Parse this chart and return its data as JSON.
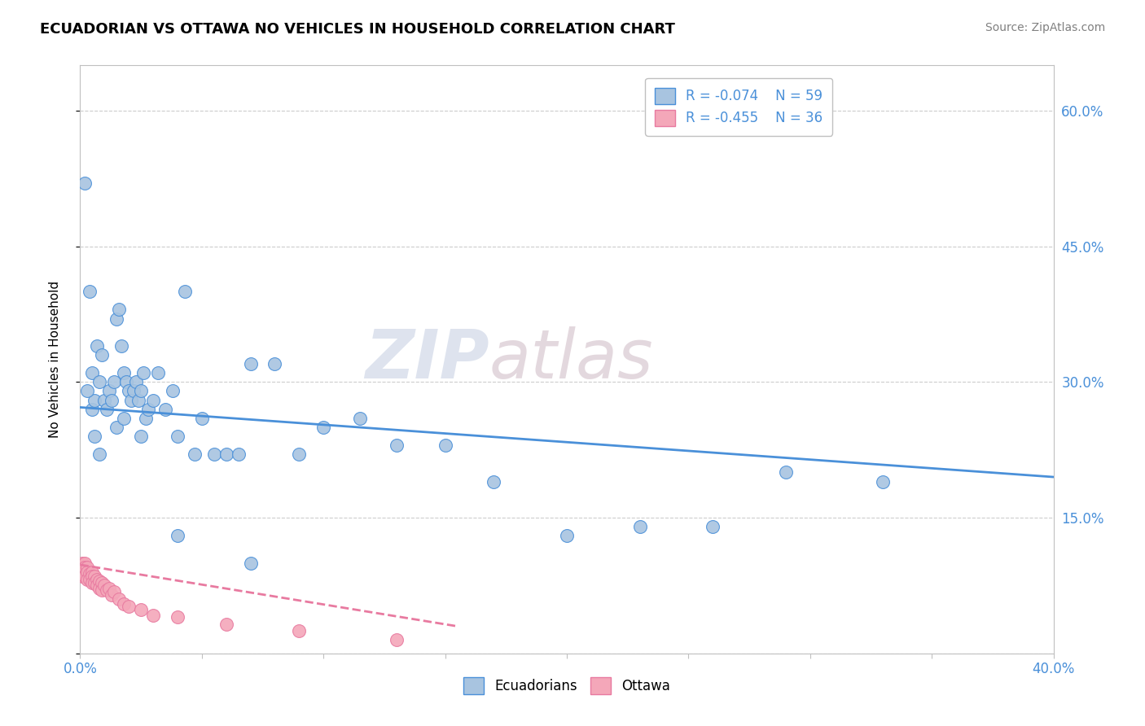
{
  "title": "ECUADORIAN VS OTTAWA NO VEHICLES IN HOUSEHOLD CORRELATION CHART",
  "source": "Source: ZipAtlas.com",
  "ylabel": "No Vehicles in Household",
  "xlim": [
    0.0,
    0.4
  ],
  "ylim": [
    0.0,
    0.65
  ],
  "xticks": [
    0.0,
    0.05,
    0.1,
    0.15,
    0.2,
    0.25,
    0.3,
    0.35,
    0.4
  ],
  "yticks": [
    0.0,
    0.15,
    0.3,
    0.45,
    0.6
  ],
  "ytick_right_labels": [
    "",
    "15.0%",
    "30.0%",
    "45.0%",
    "60.0%"
  ],
  "ecuadorians_color": "#a8c4e0",
  "ottawa_color": "#f4a7b9",
  "trend_blue": "#4a90d9",
  "trend_pink": "#e87aa0",
  "watermark_zip": "ZIP",
  "watermark_atlas": "atlas",
  "legend_r_blue": "R = -0.074",
  "legend_n_blue": "N = 59",
  "legend_r_pink": "R = -0.455",
  "legend_n_pink": "N = 36",
  "ecu_x": [
    0.002,
    0.005,
    0.005,
    0.006,
    0.007,
    0.008,
    0.009,
    0.01,
    0.011,
    0.012,
    0.013,
    0.014,
    0.015,
    0.016,
    0.017,
    0.018,
    0.019,
    0.02,
    0.021,
    0.022,
    0.023,
    0.024,
    0.025,
    0.026,
    0.027,
    0.028,
    0.03,
    0.032,
    0.035,
    0.038,
    0.04,
    0.043,
    0.047,
    0.05,
    0.055,
    0.06,
    0.065,
    0.07,
    0.08,
    0.09,
    0.1,
    0.115,
    0.13,
    0.15,
    0.17,
    0.2,
    0.23,
    0.26,
    0.29,
    0.33,
    0.003,
    0.004,
    0.006,
    0.008,
    0.015,
    0.018,
    0.025,
    0.04,
    0.07
  ],
  "ecu_y": [
    0.52,
    0.31,
    0.27,
    0.28,
    0.34,
    0.3,
    0.33,
    0.28,
    0.27,
    0.29,
    0.28,
    0.3,
    0.37,
    0.38,
    0.34,
    0.31,
    0.3,
    0.29,
    0.28,
    0.29,
    0.3,
    0.28,
    0.29,
    0.31,
    0.26,
    0.27,
    0.28,
    0.31,
    0.27,
    0.29,
    0.24,
    0.4,
    0.22,
    0.26,
    0.22,
    0.22,
    0.22,
    0.32,
    0.32,
    0.22,
    0.25,
    0.26,
    0.23,
    0.23,
    0.19,
    0.13,
    0.14,
    0.14,
    0.2,
    0.19,
    0.29,
    0.4,
    0.24,
    0.22,
    0.25,
    0.26,
    0.24,
    0.13,
    0.1
  ],
  "ott_x": [
    0.001,
    0.001,
    0.001,
    0.002,
    0.002,
    0.002,
    0.003,
    0.003,
    0.003,
    0.004,
    0.004,
    0.005,
    0.005,
    0.005,
    0.006,
    0.006,
    0.007,
    0.007,
    0.008,
    0.008,
    0.009,
    0.009,
    0.01,
    0.011,
    0.012,
    0.013,
    0.014,
    0.016,
    0.018,
    0.02,
    0.025,
    0.03,
    0.04,
    0.06,
    0.09,
    0.13
  ],
  "ott_y": [
    0.1,
    0.095,
    0.085,
    0.1,
    0.095,
    0.085,
    0.095,
    0.09,
    0.082,
    0.088,
    0.082,
    0.09,
    0.085,
    0.078,
    0.085,
    0.078,
    0.082,
    0.075,
    0.08,
    0.072,
    0.078,
    0.07,
    0.075,
    0.07,
    0.072,
    0.065,
    0.068,
    0.06,
    0.055,
    0.052,
    0.048,
    0.042,
    0.04,
    0.032,
    0.025,
    0.015
  ],
  "ecu_trend_x": [
    0.0,
    0.4
  ],
  "ecu_trend_y": [
    0.272,
    0.195
  ],
  "ott_trend_x": [
    0.0,
    0.155
  ],
  "ott_trend_y": [
    0.098,
    0.03
  ]
}
